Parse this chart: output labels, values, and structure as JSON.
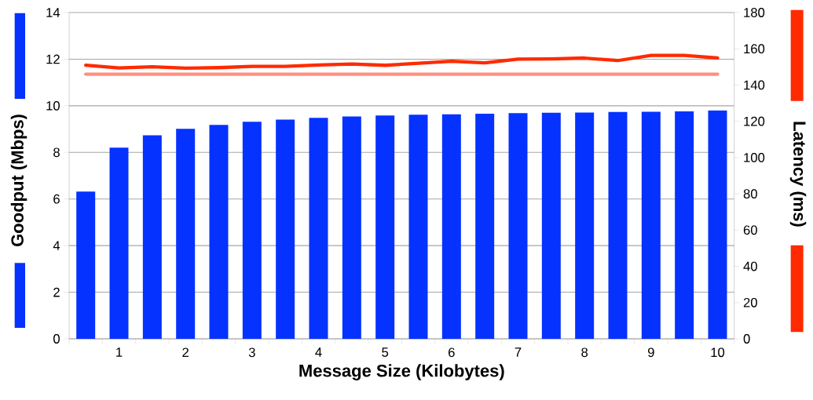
{
  "chart_data": {
    "type": "bar",
    "xlabel": "Message Size (Kilobytes)",
    "ylabel": "Goodput (Mbps)",
    "y2label": "Latency (ms)",
    "categories": [
      null,
      "1",
      null,
      "2",
      null,
      "3",
      null,
      "4",
      null,
      "5",
      null,
      "6",
      null,
      "7",
      null,
      "8",
      null,
      "9",
      null,
      "10"
    ],
    "series": [
      {
        "color": "#0532ff",
        "values": [
          6.32,
          8.2,
          8.73,
          9.01,
          9.18,
          9.31,
          9.41,
          9.48,
          9.54,
          9.58,
          9.62,
          9.63,
          9.66,
          9.68,
          9.7,
          9.71,
          9.73,
          9.74,
          9.76,
          9.8
        ]
      },
      {
        "type": "line",
        "axis": "y2",
        "color": "#ff2a00",
        "values": [
          151,
          149.4,
          150.1,
          149.3,
          149.6,
          150.3,
          150.3,
          151.1,
          151.6,
          150.9,
          152,
          153.1,
          152.2,
          154.3,
          154.4,
          154.9,
          153.5,
          156.4,
          156.4,
          155
        ]
      },
      {
        "type": "line",
        "axis": "y2",
        "color": "#ff8f80",
        "values": [
          146,
          146,
          146,
          146,
          146,
          146,
          146,
          146,
          146,
          146,
          146,
          146,
          146,
          146,
          146,
          146,
          146,
          146,
          146,
          146
        ]
      }
    ],
    "ylim": [
      0,
      14
    ],
    "yticks": [
      0,
      2,
      4,
      6,
      8,
      10,
      12,
      14
    ],
    "y2lim": [
      0,
      180
    ],
    "y2ticks": [
      0,
      20,
      40,
      60,
      80,
      100,
      120,
      140,
      160,
      180
    ],
    "grid": "y"
  }
}
